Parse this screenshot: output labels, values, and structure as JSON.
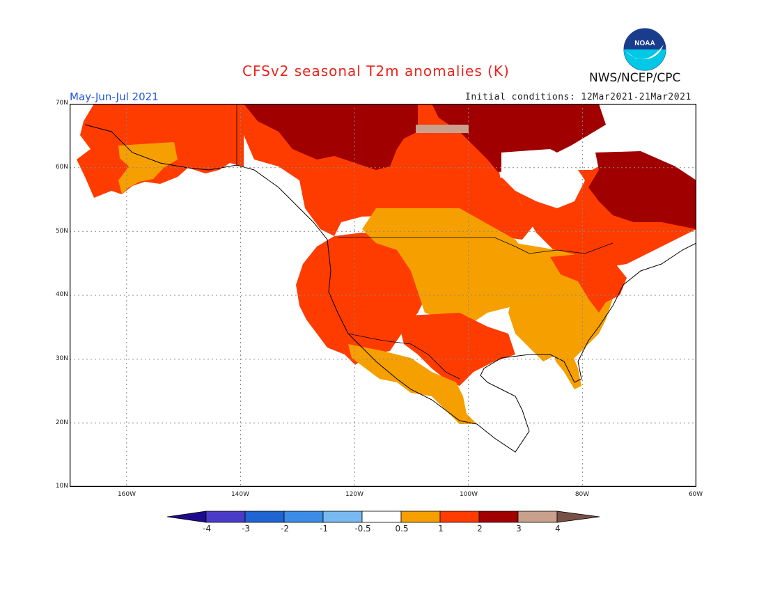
{
  "title": "CFSv2 seasonal T2m anomalies (K)",
  "period": "May-Jun-Jul 2021",
  "initial_conditions": "Initial conditions: 12Mar2021-21Mar2021",
  "agency": "NWS/NCEP/CPC",
  "logo": {
    "text": "NOAA",
    "icon": "noaa-logo-icon"
  },
  "map": {
    "region": "North America",
    "lat_range": [
      10,
      70
    ],
    "lon_range": [
      -170,
      -60
    ],
    "lat_labels": [
      "70N",
      "60N",
      "50N",
      "40N",
      "30N",
      "20N",
      "10N"
    ],
    "lon_labels": [
      "160W",
      "140W",
      "120W",
      "100W",
      "80W",
      "60W"
    ],
    "gridlines": "dotted"
  },
  "colorbar": {
    "labels": [
      "-4",
      "-3",
      "-2",
      "-1",
      "-0.5",
      "0.5",
      "1",
      "2",
      "3",
      "4"
    ],
    "colors": [
      "#1f0a8c",
      "#4a3cc9",
      "#1e64d2",
      "#3c8ce6",
      "#78b9f0",
      "#ffffff",
      "#f5a000",
      "#ff3c00",
      "#a00000",
      "#c8a08c",
      "#785046"
    ]
  }
}
